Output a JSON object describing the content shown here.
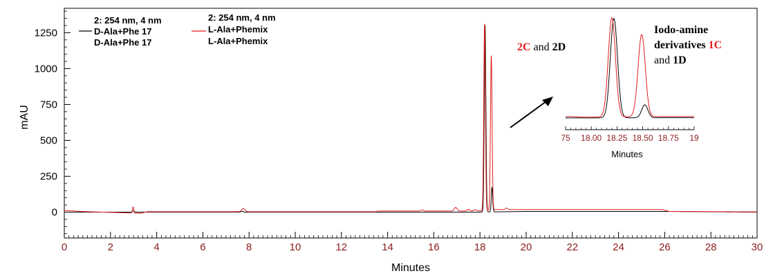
{
  "chart_data": {
    "type": "line",
    "xlabel": "Minutes",
    "ylabel": "mAU",
    "xlim": [
      0,
      30
    ],
    "ylim": [
      -180,
      1420
    ],
    "x_ticks": [
      0,
      2,
      4,
      6,
      8,
      10,
      12,
      14,
      16,
      18,
      20,
      22,
      24,
      26,
      28,
      30
    ],
    "y_ticks": [
      0,
      250,
      500,
      750,
      1000,
      1250
    ],
    "tick_color": "#8b1a1a",
    "grid": false,
    "legend": [
      {
        "lines": [
          "2: 254 nm, 4 nm",
          "D-Ala+Phe 17",
          "D-Ala+Phe 17"
        ],
        "color": "#000000"
      },
      {
        "lines": [
          "2: 254 nm, 4 nm",
          "L-Ala+Phemix",
          "L-Ala+Phemix"
        ],
        "color": "#e31a1c"
      }
    ],
    "series": [
      {
        "color": "#000000",
        "baseline": [
          [
            0,
            0
          ],
          [
            13.5,
            0
          ],
          [
            14,
            0
          ],
          [
            16.9,
            0
          ],
          [
            17.9,
            0
          ],
          [
            20,
            5
          ],
          [
            26,
            5
          ],
          [
            30,
            0
          ]
        ],
        "peaks": [
          [
            3.0,
            10,
            0.03
          ],
          [
            7.7,
            5,
            0.06
          ],
          [
            18.22,
            1300,
            0.035
          ],
          [
            18.52,
            170,
            0.03
          ]
        ]
      },
      {
        "color": "#e31a1c",
        "baseline": [
          [
            0,
            12
          ],
          [
            0.7,
            5
          ],
          [
            3.3,
            -8
          ],
          [
            3.6,
            3
          ],
          [
            13.5,
            3
          ],
          [
            13.6,
            8
          ],
          [
            17.9,
            8
          ],
          [
            18.7,
            18
          ],
          [
            25.9,
            18
          ],
          [
            26.2,
            5
          ],
          [
            30,
            2
          ]
        ],
        "peaks": [
          [
            2.98,
            42,
            0.03
          ],
          [
            7.75,
            22,
            0.07
          ],
          [
            15.5,
            8,
            0.05
          ],
          [
            16.95,
            25,
            0.06
          ],
          [
            17.5,
            12,
            0.05
          ],
          [
            17.8,
            10,
            0.05
          ],
          [
            18.2,
            1300,
            0.035
          ],
          [
            18.49,
            1075,
            0.035
          ],
          [
            19.15,
            10,
            0.05
          ]
        ]
      }
    ],
    "inset": {
      "xlabel": "Minutes",
      "x_ticks": [
        "75",
        "18.00",
        "18.25",
        "18.50",
        "18.75",
        "19"
      ],
      "x_tick_values": [
        17.75,
        18.0,
        18.25,
        18.5,
        18.75,
        19.0
      ],
      "xlim": [
        17.75,
        19.0
      ]
    },
    "annotations": {
      "left": {
        "parts": [
          {
            "text": "2C",
            "color": "#e31a1c",
            "bold": true
          },
          {
            "text": " and ",
            "color": "#000000",
            "bold": false
          },
          {
            "text": "2D",
            "color": "#000000",
            "bold": true
          }
        ]
      },
      "right_line1": {
        "parts": [
          {
            "text": "Iodo-amine",
            "color": "#000000",
            "bold": true
          }
        ]
      },
      "right_line2": {
        "parts": [
          {
            "text": "derivatives ",
            "color": "#000000",
            "bold": true
          },
          {
            "text": "1C",
            "color": "#e31a1c",
            "bold": true
          }
        ]
      },
      "right_line3": {
        "parts": [
          {
            "text": "and ",
            "color": "#000000",
            "bold": false
          },
          {
            "text": "1D",
            "color": "#000000",
            "bold": true
          }
        ]
      }
    }
  }
}
